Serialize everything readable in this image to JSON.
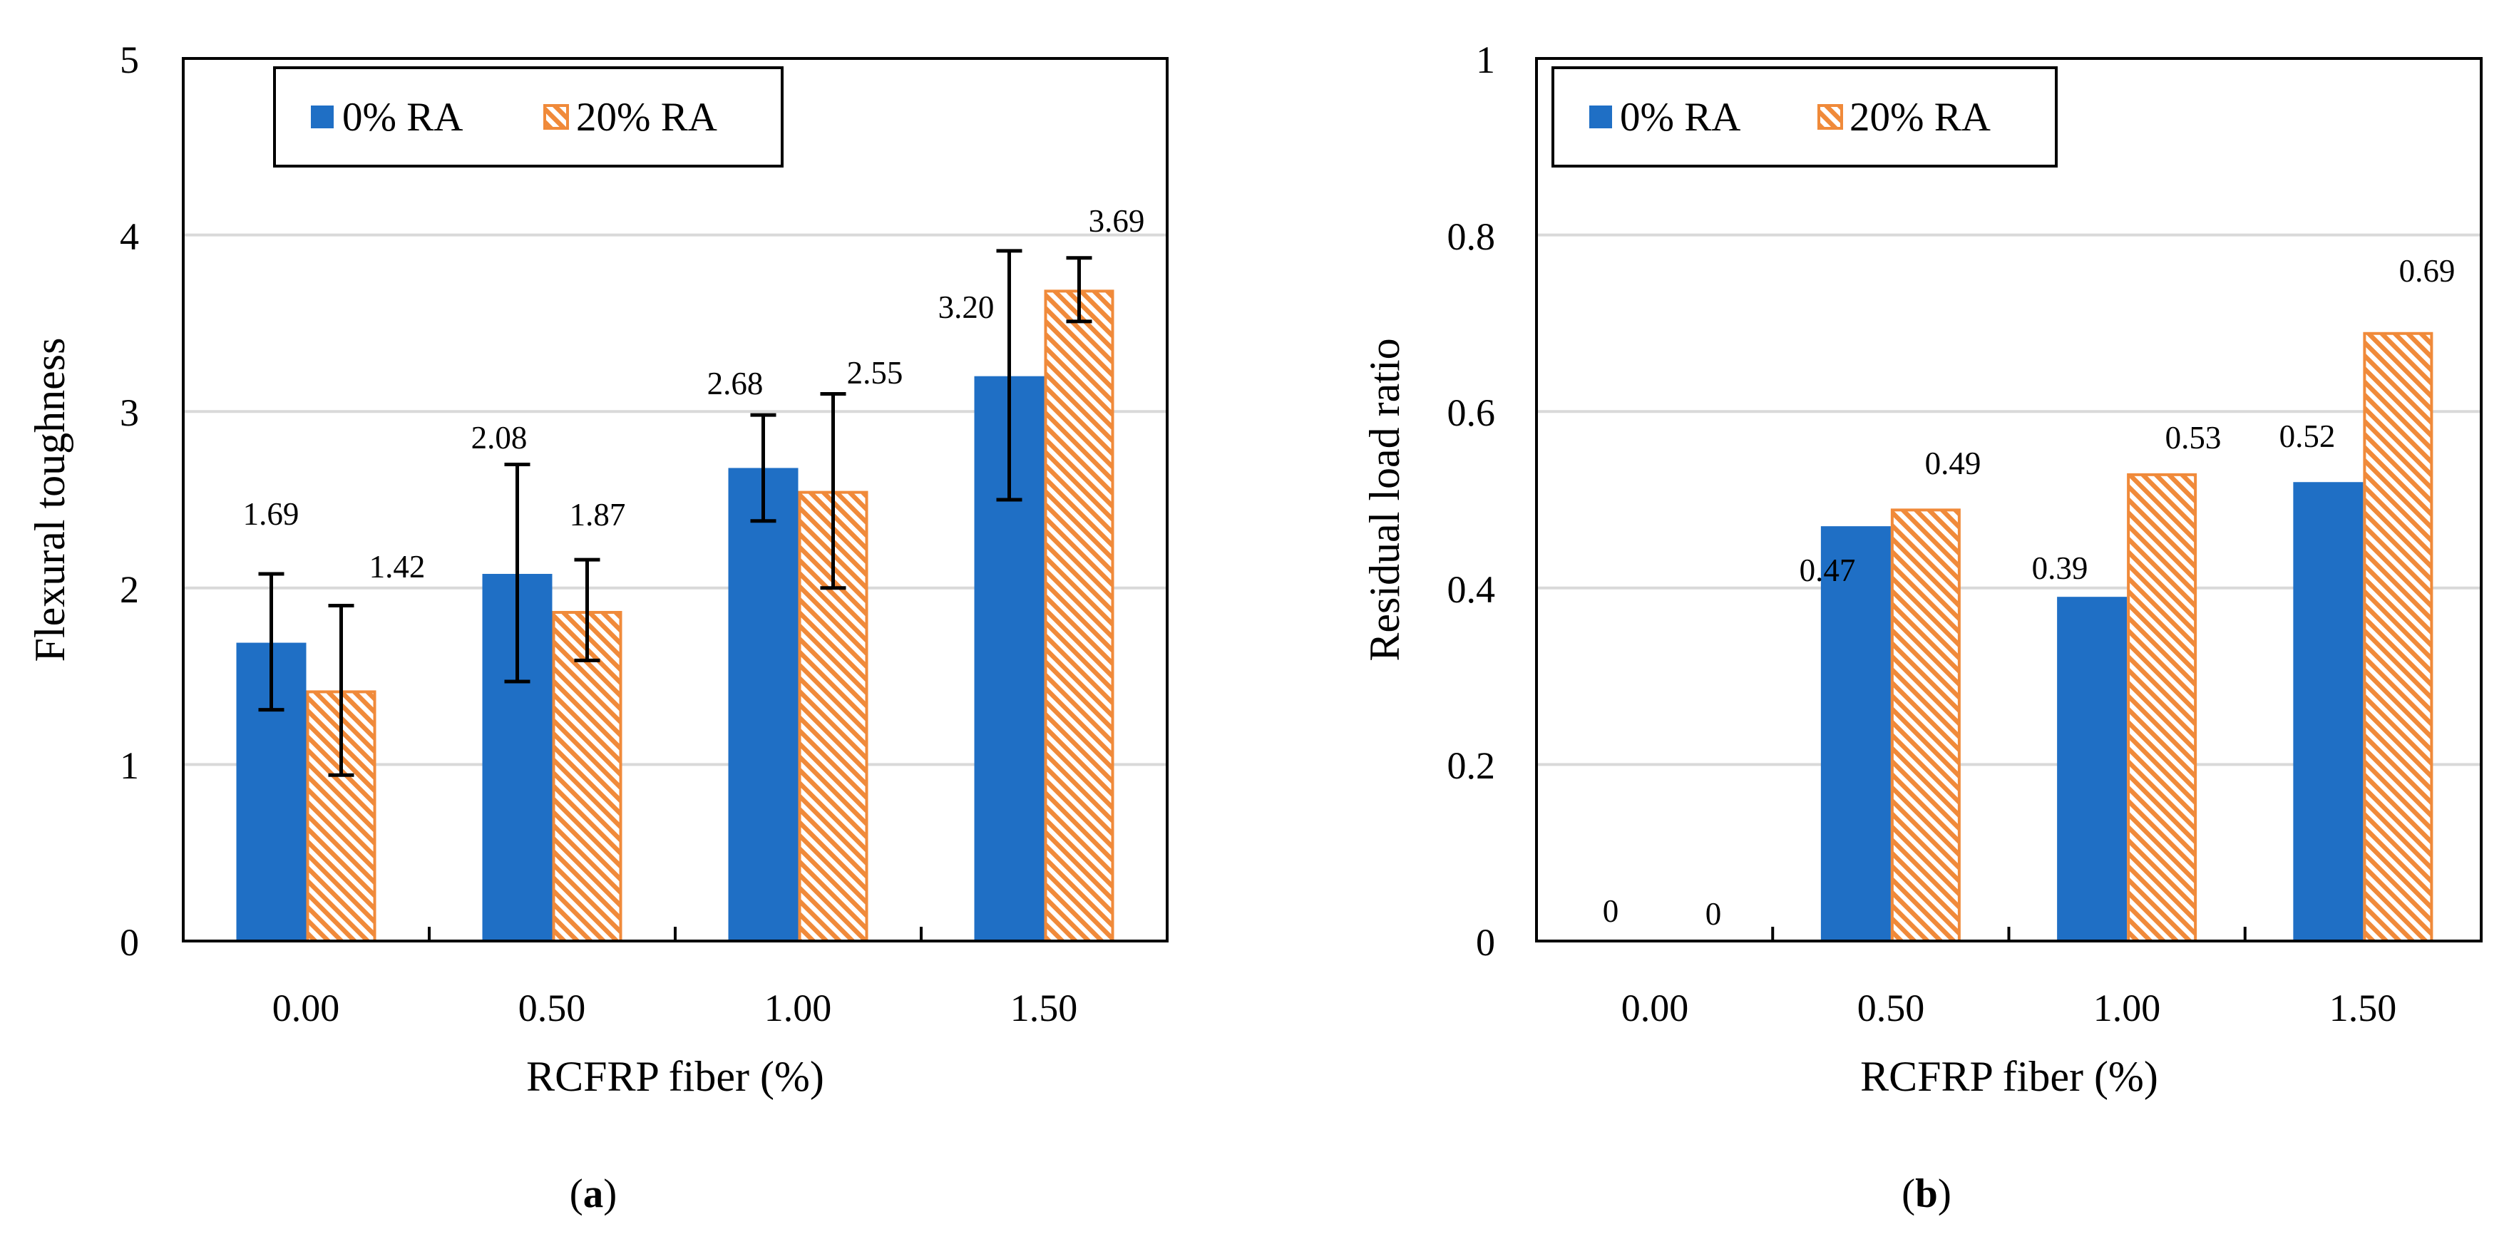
{
  "colors": {
    "ra0": "#1f6fc5",
    "ra20": "#f08a3a",
    "grid": "#d9d9d9",
    "axis": "#000000"
  },
  "chart_data": [
    {
      "id": "a",
      "type": "bar",
      "caption_open": "(",
      "caption_letter": "a",
      "caption_close": ")",
      "xlabel": "RCFRP fiber (%)",
      "ylabel": "Flexural toughness",
      "categories": [
        "0.00",
        "0.50",
        "1.00",
        "1.50"
      ],
      "ylim": [
        0,
        5
      ],
      "yticks": [
        "0",
        "1",
        "2",
        "3",
        "4",
        "5"
      ],
      "legend_position": "top-left",
      "series": [
        {
          "name": "0% RA",
          "values": [
            1.69,
            2.08,
            2.68,
            3.2
          ],
          "labels": [
            "1.69",
            "2.08",
            "2.68",
            "3.20"
          ],
          "err_low": [
            1.31,
            1.47,
            2.38,
            2.5
          ],
          "err_high": [
            2.08,
            2.7,
            2.98,
            3.91
          ]
        },
        {
          "name": "20% RA",
          "values": [
            1.42,
            1.87,
            2.55,
            3.69
          ],
          "labels": [
            "1.42",
            "1.87",
            "2.55",
            "3.69"
          ],
          "err_low": [
            0.94,
            1.59,
            2.0,
            3.51
          ],
          "err_high": [
            1.9,
            2.16,
            3.1,
            3.87
          ]
        }
      ]
    },
    {
      "id": "b",
      "type": "bar",
      "caption_open": "(",
      "caption_letter": "b",
      "caption_close": ")",
      "xlabel": "RCFRP fiber (%)",
      "ylabel": "Residual load ratio",
      "categories": [
        "0.00",
        "0.50",
        "1.00",
        "1.50"
      ],
      "ylim": [
        0,
        1
      ],
      "yticks": [
        "0",
        "0.2",
        "0.4",
        "0.6",
        "0.8",
        "1"
      ],
      "legend_position": "top-left",
      "series": [
        {
          "name": "0% RA",
          "values": [
            0,
            0.47,
            0.39,
            0.52
          ],
          "labels": [
            "0",
            "0.47",
            "0.39",
            "0.52"
          ]
        },
        {
          "name": "20% RA",
          "values": [
            0,
            0.49,
            0.53,
            0.69
          ],
          "labels": [
            "0",
            "0.49",
            "0.53",
            "0.69"
          ]
        }
      ]
    }
  ]
}
